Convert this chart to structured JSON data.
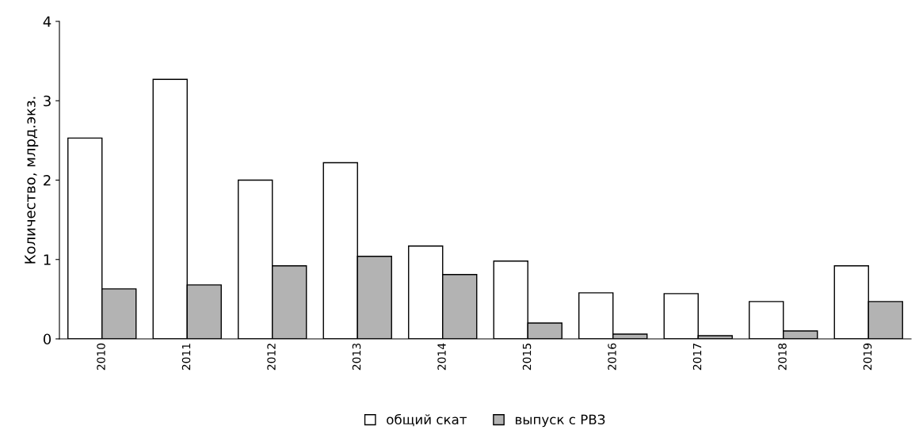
{
  "chart_data": {
    "type": "bar",
    "ylabel": "Количество, млрд.экз.",
    "categories": [
      "2010",
      "2011",
      "2012",
      "2013",
      "2014",
      "2015",
      "2016",
      "2017",
      "2018",
      "2019"
    ],
    "series": [
      {
        "name": "общий скат",
        "color": "#ffffff",
        "values": [
          2.53,
          3.27,
          2.0,
          2.22,
          1.17,
          0.98,
          0.58,
          0.57,
          0.47,
          0.92
        ]
      },
      {
        "name": "выпуск с РВЗ",
        "color": "#b3b3b3",
        "values": [
          0.63,
          0.68,
          0.92,
          1.04,
          0.81,
          0.2,
          0.06,
          0.04,
          0.1,
          0.47
        ]
      }
    ],
    "ylim": [
      0,
      4
    ],
    "yticks": [
      0,
      1,
      2,
      3,
      4
    ],
    "grid": false,
    "legend": "bottom"
  }
}
